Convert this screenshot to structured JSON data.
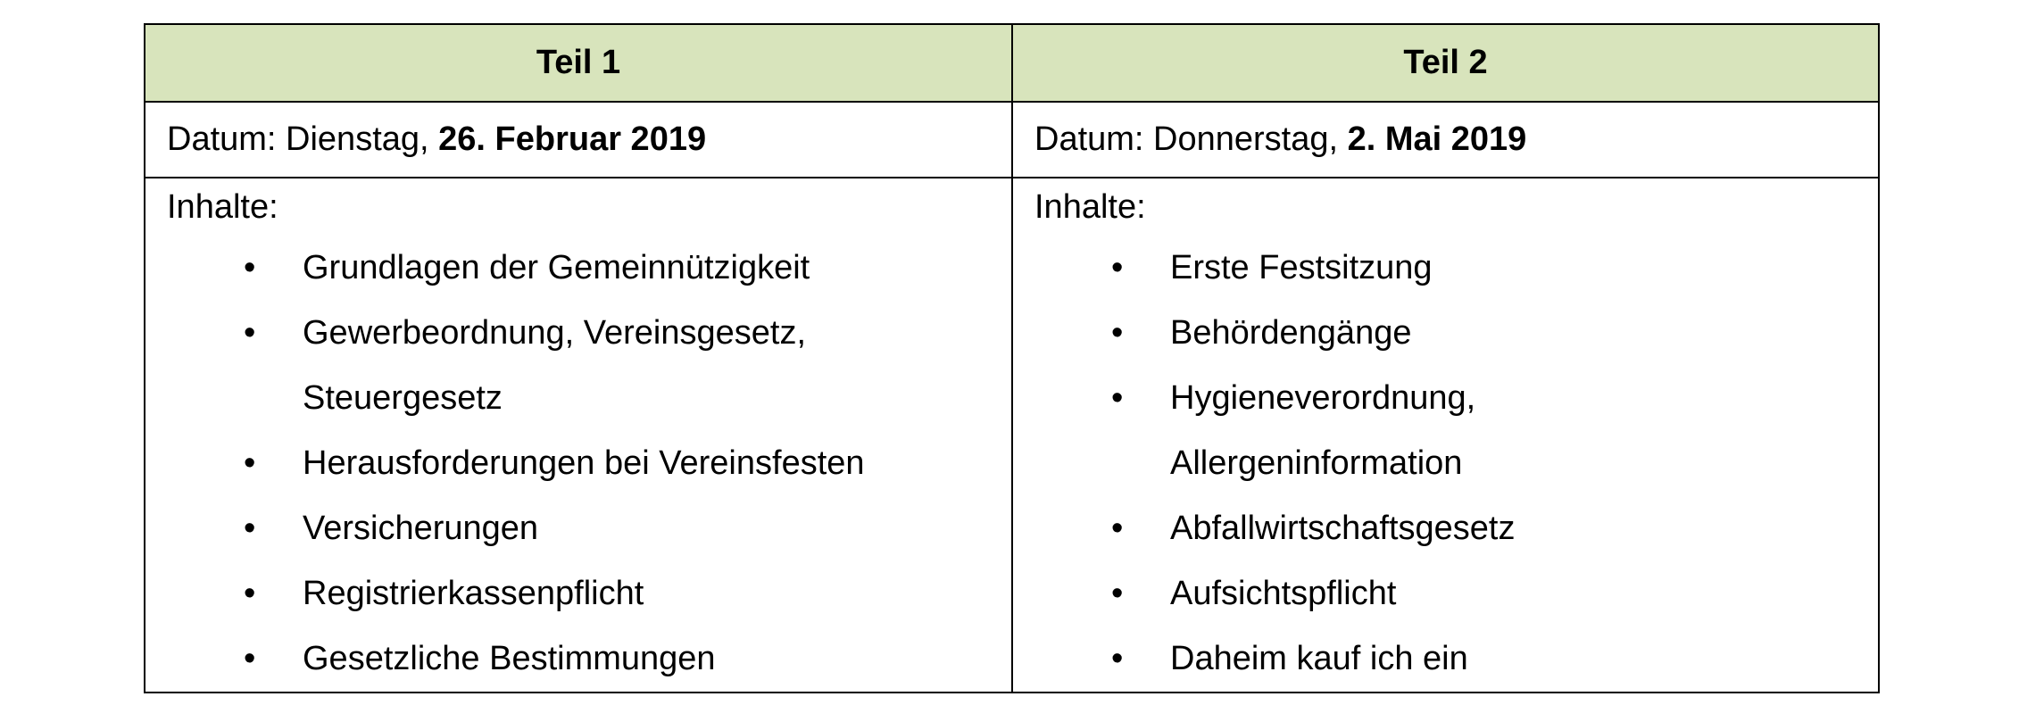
{
  "table": {
    "headers": [
      "Teil 1",
      "Teil 2"
    ],
    "columns": [
      {
        "date_prefix": "Datum: Dienstag, ",
        "date_bold": "26. Februar 2019",
        "content_label": "Inhalte:",
        "items": [
          [
            "Grundlagen der Gemeinnützigkeit"
          ],
          [
            "Gewerbeordnung, Vereinsgesetz,",
            "Steuergesetz"
          ],
          [
            "Herausforderungen bei Vereinsfesten"
          ],
          [
            "Versicherungen"
          ],
          [
            "Registrierkassenpflicht"
          ],
          [
            "Gesetzliche Bestimmungen"
          ]
        ]
      },
      {
        "date_prefix": "Datum: Donnerstag, ",
        "date_bold": "2. Mai 2019",
        "content_label": "Inhalte:",
        "items": [
          [
            "Erste Festsitzung"
          ],
          [
            "Behördengänge"
          ],
          [
            "Hygieneverordnung,",
            "Allergeninformation"
          ],
          [
            "Abfallwirtschaftsgesetz"
          ],
          [
            "Aufsichtspflicht"
          ],
          [
            "Daheim kauf ich ein"
          ]
        ]
      }
    ],
    "bullet": "•",
    "colors": {
      "header_bg": "#d8e4bc",
      "border": "#000000"
    }
  }
}
